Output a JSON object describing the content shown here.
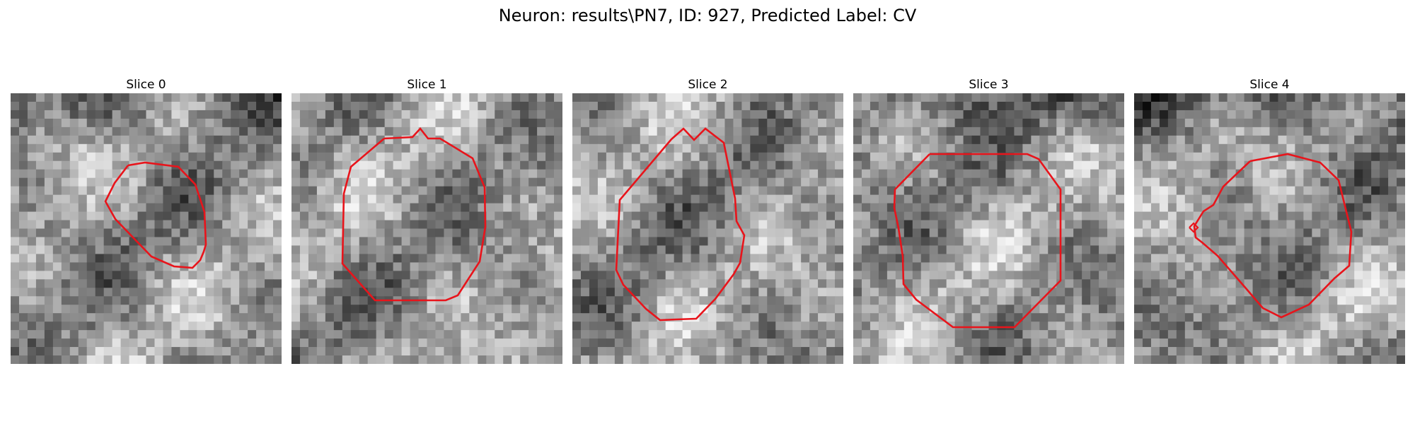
{
  "figure": {
    "title": "Neuron: results\\PN7, ID: 927, Predicted Label: CV"
  },
  "contour_color": "#e8141b",
  "colormap": "gray",
  "panels": [
    {
      "title": "Slice 0",
      "seed": 11,
      "dark_top": true
    },
    {
      "title": "Slice 1",
      "seed": 23,
      "dark_top": false
    },
    {
      "title": "Slice 2",
      "seed": 37,
      "dark_top": false
    },
    {
      "title": "Slice 3",
      "seed": 51,
      "dark_top": true
    },
    {
      "title": "Slice 4",
      "seed": 67,
      "dark_top": true
    }
  ]
}
